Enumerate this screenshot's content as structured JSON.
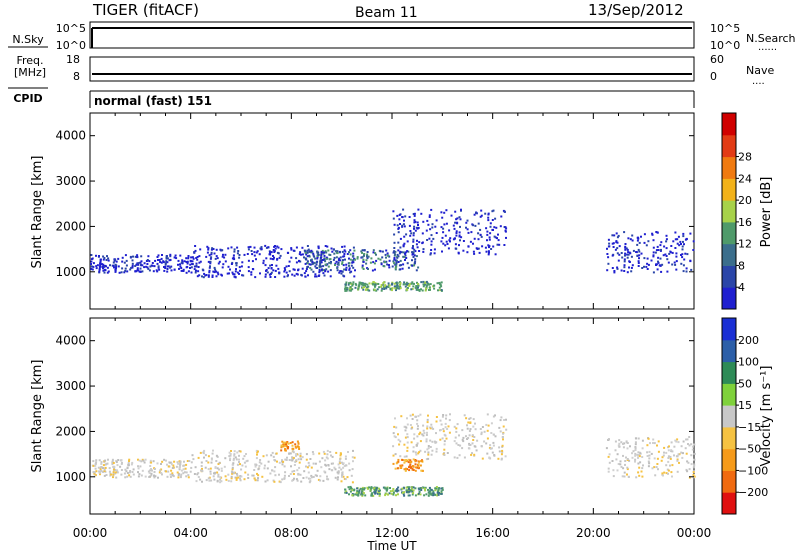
{
  "header": {
    "station": "TIGER (fitACF)",
    "beam": "Beam 11",
    "date": "13/Sep/2012"
  },
  "strips": {
    "nsky": {
      "left_label": "N.Sky",
      "right_label": "N.Search",
      "left_ticks": [
        "10^5",
        "10^0"
      ],
      "right_ticks": [
        "10^5",
        "10^0"
      ]
    },
    "freq": {
      "left_label_1": "Freq.",
      "left_label_2": "[MHz]",
      "right_label": "Nave",
      "left_ticks": [
        "18",
        "8"
      ],
      "right_ticks": [
        "60",
        "0"
      ]
    },
    "cpid": {
      "label": "CPID",
      "value": "normal (fast) 151"
    }
  },
  "chart_data": [
    {
      "type": "heatmap",
      "panel": "power",
      "ylabel": "Slant Range [km]",
      "ylim": [
        180,
        4500
      ],
      "y_ticks": [
        "1000",
        "2000",
        "3000",
        "4000"
      ],
      "colorbar_label": "Power [dB]",
      "colorbar_ticks": [
        "4",
        "8",
        "12",
        "16",
        "20",
        "24",
        "28"
      ],
      "colorbar_colors": [
        "#1f1fcf",
        "#2a45a8",
        "#3b6e8c",
        "#4f9a6a",
        "#a7d24a",
        "#f2b21a",
        "#f07a10",
        "#e23b15",
        "#d00000"
      ],
      "scatter_regions": [
        {
          "t_start": 0.0,
          "t_end": 4.0,
          "r_low": 1000,
          "r_high": 1400,
          "dominant": "blue"
        },
        {
          "t_start": 4.0,
          "t_end": 10.5,
          "r_low": 900,
          "r_high": 1600,
          "dominant": "blue"
        },
        {
          "t_start": 8.5,
          "t_end": 13.0,
          "r_low": 1050,
          "r_high": 1500,
          "dominant": "blue-green"
        },
        {
          "t_start": 10.0,
          "t_end": 14.0,
          "r_low": 600,
          "r_high": 800,
          "dominant": "green"
        },
        {
          "t_start": 12.0,
          "t_end": 16.5,
          "r_low": 1400,
          "r_high": 2400,
          "dominant": "blue"
        },
        {
          "t_start": 20.5,
          "t_end": 24.0,
          "r_low": 1000,
          "r_high": 1900,
          "dominant": "blue"
        }
      ]
    },
    {
      "type": "heatmap",
      "panel": "velocity",
      "xlabel": "Time UT",
      "ylabel": "Slant Range [km]",
      "xlim": [
        0,
        24
      ],
      "x_ticks": [
        "00:00",
        "04:00",
        "08:00",
        "12:00",
        "16:00",
        "20:00",
        "00:00"
      ],
      "ylim": [
        180,
        4500
      ],
      "y_ticks": [
        "1000",
        "2000",
        "3000",
        "4000"
      ],
      "colorbar_label": "Velocity [m s⁻¹]",
      "colorbar_ticks": [
        "200",
        "100",
        "50",
        "15",
        "−15",
        "−50",
        "−100",
        "−200"
      ],
      "colorbar_colors": [
        "#1a2fd4",
        "#2c5fa8",
        "#2e8b57",
        "#7fd13b",
        "#c8c8c8",
        "#f5c242",
        "#f59a1a",
        "#f06a10",
        "#e01010"
      ],
      "scatter_regions": [
        {
          "t_start": 0.0,
          "t_end": 4.0,
          "r_low": 1000,
          "r_high": 1400,
          "dominant": "grey"
        },
        {
          "t_start": 4.0,
          "t_end": 10.5,
          "r_low": 900,
          "r_high": 1600,
          "dominant": "grey"
        },
        {
          "t_start": 7.5,
          "t_end": 8.3,
          "r_low": 1600,
          "r_high": 1800,
          "dominant": "orange"
        },
        {
          "t_start": 12.0,
          "t_end": 13.2,
          "r_low": 1150,
          "r_high": 1400,
          "dominant": "orange"
        },
        {
          "t_start": 10.0,
          "t_end": 14.0,
          "r_low": 600,
          "r_high": 800,
          "dominant": "green"
        },
        {
          "t_start": 12.0,
          "t_end": 16.5,
          "r_low": 1400,
          "r_high": 2400,
          "dominant": "grey"
        },
        {
          "t_start": 20.5,
          "t_end": 24.0,
          "r_low": 1000,
          "r_high": 1900,
          "dominant": "grey"
        }
      ]
    }
  ]
}
